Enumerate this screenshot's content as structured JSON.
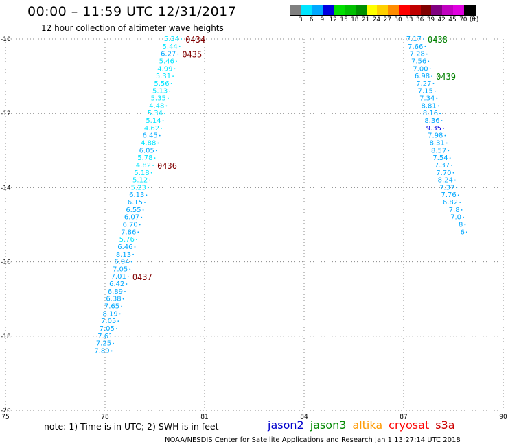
{
  "title": "00:00 – 11:59 UTC 12/31/2017",
  "subtitle": "12 hour collection of altimeter wave heights",
  "colorbar": {
    "colors": [
      "#808080",
      "#00e5ff",
      "#00a8ff",
      "#0000e0",
      "#00e000",
      "#00c000",
      "#009000",
      "#ffff00",
      "#ffd000",
      "#ff8c00",
      "#ff0000",
      "#c00000",
      "#800000",
      "#800080",
      "#c000c0",
      "#e000e0",
      "#000000"
    ],
    "labels": [
      "3",
      "6",
      "9",
      "12",
      "15",
      "18",
      "21",
      "24",
      "27",
      "30",
      "33",
      "36",
      "39",
      "42",
      "45",
      "70",
      "(ft)"
    ]
  },
  "chart_data": {
    "type": "scatter",
    "x_ticks": [
      "75",
      "78",
      "81",
      "84",
      "87",
      "90"
    ],
    "y_ticks": [
      "-10",
      "-12",
      "-14",
      "-16",
      "-18",
      "-20"
    ],
    "xlim": [
      75,
      90
    ],
    "ylim": [
      -20,
      -10
    ],
    "grid": true,
    "series": [
      {
        "name": "cryosat",
        "color_scale": "swh_ft",
        "points": [
          {
            "x": 80.3,
            "y": -10.0,
            "v": "5.34"
          },
          {
            "x": 80.25,
            "y": -10.2,
            "v": "5.44"
          },
          {
            "x": 80.2,
            "y": -10.4,
            "v": "6.27"
          },
          {
            "x": 80.15,
            "y": -10.6,
            "v": "5.46"
          },
          {
            "x": 80.1,
            "y": -10.8,
            "v": "4.99"
          },
          {
            "x": 80.05,
            "y": -11.0,
            "v": "5.31"
          },
          {
            "x": 80.0,
            "y": -11.2,
            "v": "5.56"
          },
          {
            "x": 79.95,
            "y": -11.4,
            "v": "5.13"
          },
          {
            "x": 79.9,
            "y": -11.6,
            "v": "5.35"
          },
          {
            "x": 79.85,
            "y": -11.8,
            "v": "4.48"
          },
          {
            "x": 79.8,
            "y": -12.0,
            "v": "5.34"
          },
          {
            "x": 79.75,
            "y": -12.2,
            "v": "5.14"
          },
          {
            "x": 79.7,
            "y": -12.4,
            "v": "4.62"
          },
          {
            "x": 79.65,
            "y": -12.6,
            "v": "6.45"
          },
          {
            "x": 79.6,
            "y": -12.8,
            "v": "4.88"
          },
          {
            "x": 79.55,
            "y": -13.0,
            "v": "6.05"
          },
          {
            "x": 79.5,
            "y": -13.2,
            "v": "5.78"
          },
          {
            "x": 79.45,
            "y": -13.4,
            "v": "4.82"
          },
          {
            "x": 79.4,
            "y": -13.6,
            "v": "5.18"
          },
          {
            "x": 79.35,
            "y": -13.8,
            "v": "5.12"
          },
          {
            "x": 79.3,
            "y": -14.0,
            "v": "5.23"
          },
          {
            "x": 79.25,
            "y": -14.2,
            "v": "6.13"
          },
          {
            "x": 79.2,
            "y": -14.4,
            "v": "6.15"
          },
          {
            "x": 79.15,
            "y": -14.6,
            "v": "6.55"
          },
          {
            "x": 79.1,
            "y": -14.8,
            "v": "6.07"
          },
          {
            "x": 79.05,
            "y": -15.0,
            "v": "6.70"
          },
          {
            "x": 79.0,
            "y": -15.2,
            "v": "7.86"
          },
          {
            "x": 78.95,
            "y": -15.4,
            "v": "5.76"
          },
          {
            "x": 78.9,
            "y": -15.6,
            "v": "6.46"
          },
          {
            "x": 78.85,
            "y": -15.8,
            "v": "8.13"
          },
          {
            "x": 78.8,
            "y": -16.0,
            "v": "6.94"
          },
          {
            "x": 78.75,
            "y": -16.2,
            "v": "7.05"
          },
          {
            "x": 78.7,
            "y": -16.4,
            "v": "7.01"
          },
          {
            "x": 78.65,
            "y": -16.6,
            "v": "6.42"
          },
          {
            "x": 78.6,
            "y": -16.8,
            "v": "6.89"
          },
          {
            "x": 78.55,
            "y": -17.0,
            "v": "6.38"
          },
          {
            "x": 78.5,
            "y": -17.2,
            "v": "7.65"
          },
          {
            "x": 78.45,
            "y": -17.4,
            "v": "8.19"
          },
          {
            "x": 78.4,
            "y": -17.6,
            "v": "7.05"
          },
          {
            "x": 78.35,
            "y": -17.8,
            "v": "7.05"
          },
          {
            "x": 78.3,
            "y": -18.0,
            "v": "7.61"
          },
          {
            "x": 78.25,
            "y": -18.2,
            "v": "7.25"
          },
          {
            "x": 78.2,
            "y": -18.4,
            "v": "7.89"
          }
        ]
      },
      {
        "name": "jason3",
        "color_scale": "swh_ft",
        "points": [
          {
            "x": 87.6,
            "y": -10.0,
            "v": "7.17"
          },
          {
            "x": 87.65,
            "y": -10.2,
            "v": "7.66"
          },
          {
            "x": 87.7,
            "y": -10.4,
            "v": "7.28"
          },
          {
            "x": 87.75,
            "y": -10.6,
            "v": "7.56"
          },
          {
            "x": 87.8,
            "y": -10.8,
            "v": "7.00"
          },
          {
            "x": 87.85,
            "y": -11.0,
            "v": "6.98"
          },
          {
            "x": 87.9,
            "y": -11.2,
            "v": "7.27"
          },
          {
            "x": 87.95,
            "y": -11.4,
            "v": "7.15"
          },
          {
            "x": 88.0,
            "y": -11.6,
            "v": "7.34"
          },
          {
            "x": 88.05,
            "y": -11.8,
            "v": "8.81"
          },
          {
            "x": 88.1,
            "y": -12.0,
            "v": "8.16"
          },
          {
            "x": 88.15,
            "y": -12.2,
            "v": "8.36"
          },
          {
            "x": 88.2,
            "y": -12.4,
            "v": "9.35"
          },
          {
            "x": 88.25,
            "y": -12.6,
            "v": "7.98"
          },
          {
            "x": 88.3,
            "y": -12.8,
            "v": "8.31"
          },
          {
            "x": 88.35,
            "y": -13.0,
            "v": "8.57"
          },
          {
            "x": 88.4,
            "y": -13.2,
            "v": "7.54"
          },
          {
            "x": 88.45,
            "y": -13.4,
            "v": "7.37"
          },
          {
            "x": 88.5,
            "y": -13.6,
            "v": "7.70"
          },
          {
            "x": 88.55,
            "y": -13.8,
            "v": "8.24"
          },
          {
            "x": 88.6,
            "y": -14.0,
            "v": "7.37"
          },
          {
            "x": 88.65,
            "y": -14.2,
            "v": "7.76"
          },
          {
            "x": 88.7,
            "y": -14.4,
            "v": "6.82"
          },
          {
            "x": 88.75,
            "y": -14.6,
            "v": "7.8"
          },
          {
            "x": 88.8,
            "y": -14.8,
            "v": "7.0"
          },
          {
            "x": 88.85,
            "y": -15.0,
            "v": "8"
          },
          {
            "x": 88.9,
            "y": -15.2,
            "v": "6"
          }
        ]
      }
    ],
    "annotations": [
      {
        "text": "0434",
        "x": 80.3,
        "y": -10.0,
        "color": "#800000"
      },
      {
        "text": "0435",
        "x": 80.2,
        "y": -10.4,
        "color": "#800000"
      },
      {
        "text": "0436",
        "x": 79.45,
        "y": -13.4,
        "color": "#800000"
      },
      {
        "text": "0437",
        "x": 78.7,
        "y": -16.4,
        "color": "#800000"
      },
      {
        "text": "0438",
        "x": 87.6,
        "y": -10.0,
        "color": "#008000"
      },
      {
        "text": "0439",
        "x": 87.85,
        "y": -11.0,
        "color": "#008000"
      }
    ]
  },
  "footer": {
    "note": "note:  1) Time is in UTC;  2) SWH is in feet",
    "satellites": [
      {
        "name": "jason2",
        "color": "#0000cc"
      },
      {
        "name": "jason3",
        "color": "#008800"
      },
      {
        "name": "altika",
        "color": "#ff9900"
      },
      {
        "name": "cryosat",
        "color": "#ff0000"
      },
      {
        "name": "s3a",
        "color": "#cc0000"
      }
    ],
    "credit": "NOAA/NESDIS Center for Satellite Applications and Research     Jan  1 13:27:14 UTC 2018"
  }
}
